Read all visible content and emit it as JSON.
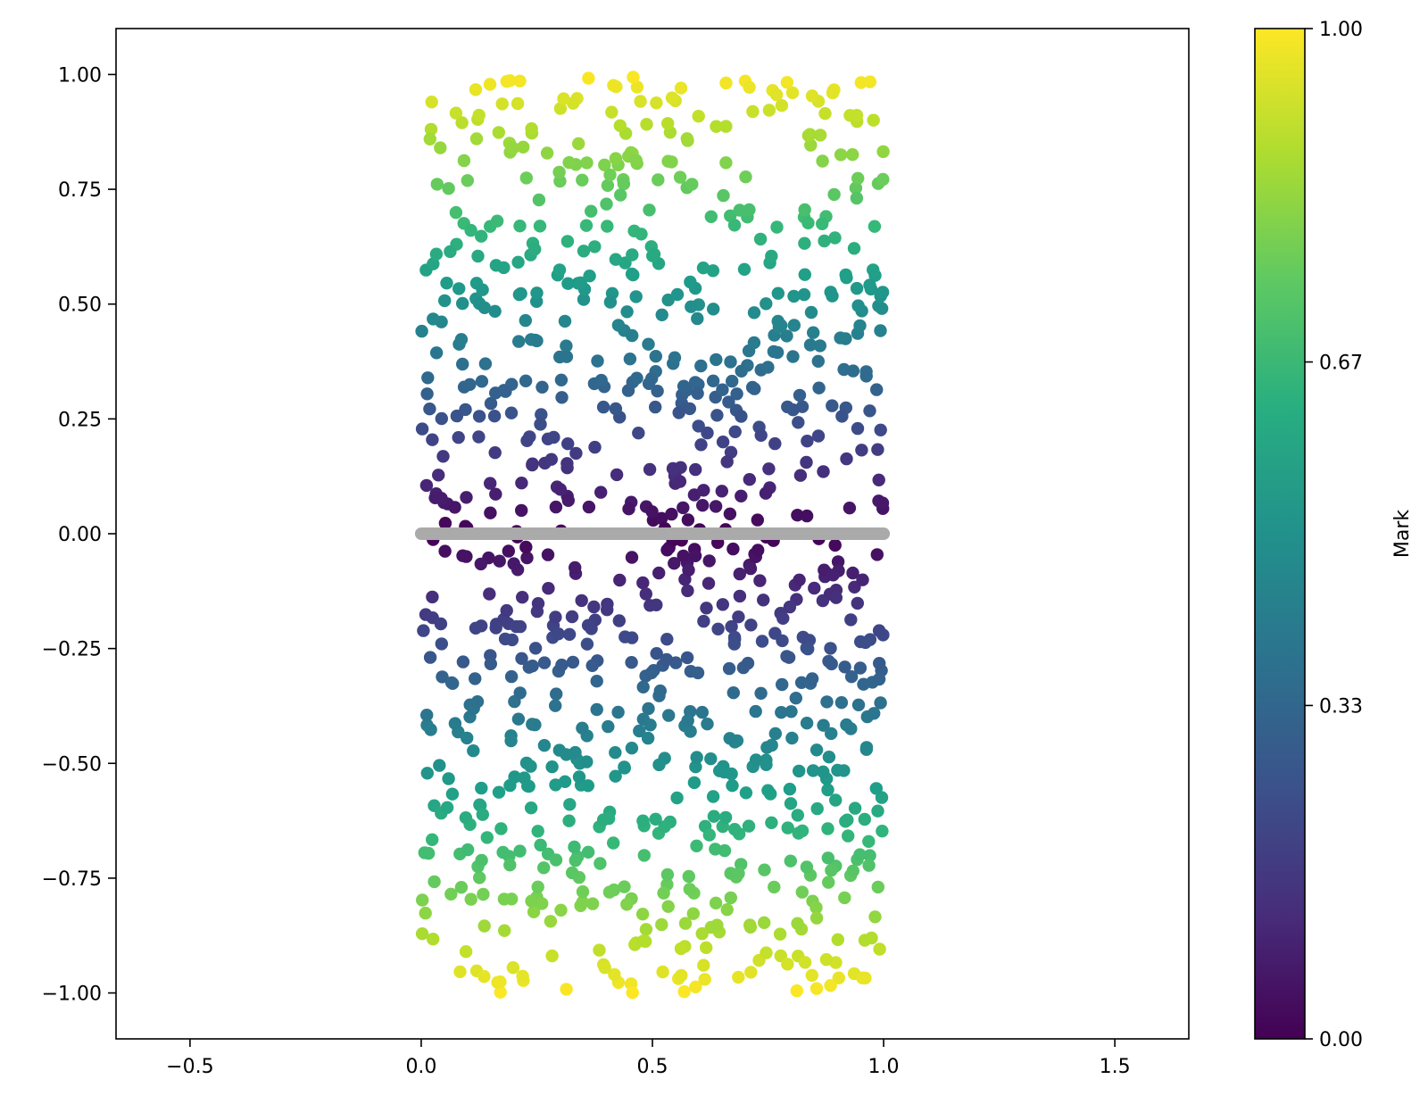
{
  "chart_data": {
    "type": "scatter",
    "xlim": [
      -0.66,
      1.66
    ],
    "ylim": [
      -1.1,
      1.1
    ],
    "x_ticks": [
      -0.5,
      0.0,
      0.5,
      1.0,
      1.5
    ],
    "x_tick_labels": [
      "−0.5",
      "0.0",
      "0.5",
      "1.0",
      "1.5"
    ],
    "y_ticks": [
      -1.0,
      -0.75,
      -0.5,
      -0.25,
      0.0,
      0.25,
      0.5,
      0.75,
      1.0
    ],
    "y_tick_labels": [
      "−1.00",
      "−0.75",
      "−0.50",
      "−0.25",
      "0.00",
      "0.25",
      "0.50",
      "0.75",
      "1.00"
    ],
    "grid": false,
    "colormap": "viridis",
    "colorbar": {
      "label": "Mark",
      "range": [
        0.0,
        1.0
      ],
      "ticks": [
        0.0,
        0.33,
        0.67,
        1.0
      ],
      "tick_labels": [
        "0.00",
        "0.33",
        "0.67",
        "1.00"
      ]
    },
    "series": [
      {
        "kind": "points",
        "count": 1000,
        "x_range": [
          0.0,
          1.0
        ],
        "y_range": [
          -1.0,
          1.0
        ],
        "color_value": "|y|"
      },
      {
        "kind": "line",
        "x_range": [
          0.0,
          1.0
        ],
        "y_value": 0.0,
        "color": "#aaaaaa"
      }
    ]
  }
}
